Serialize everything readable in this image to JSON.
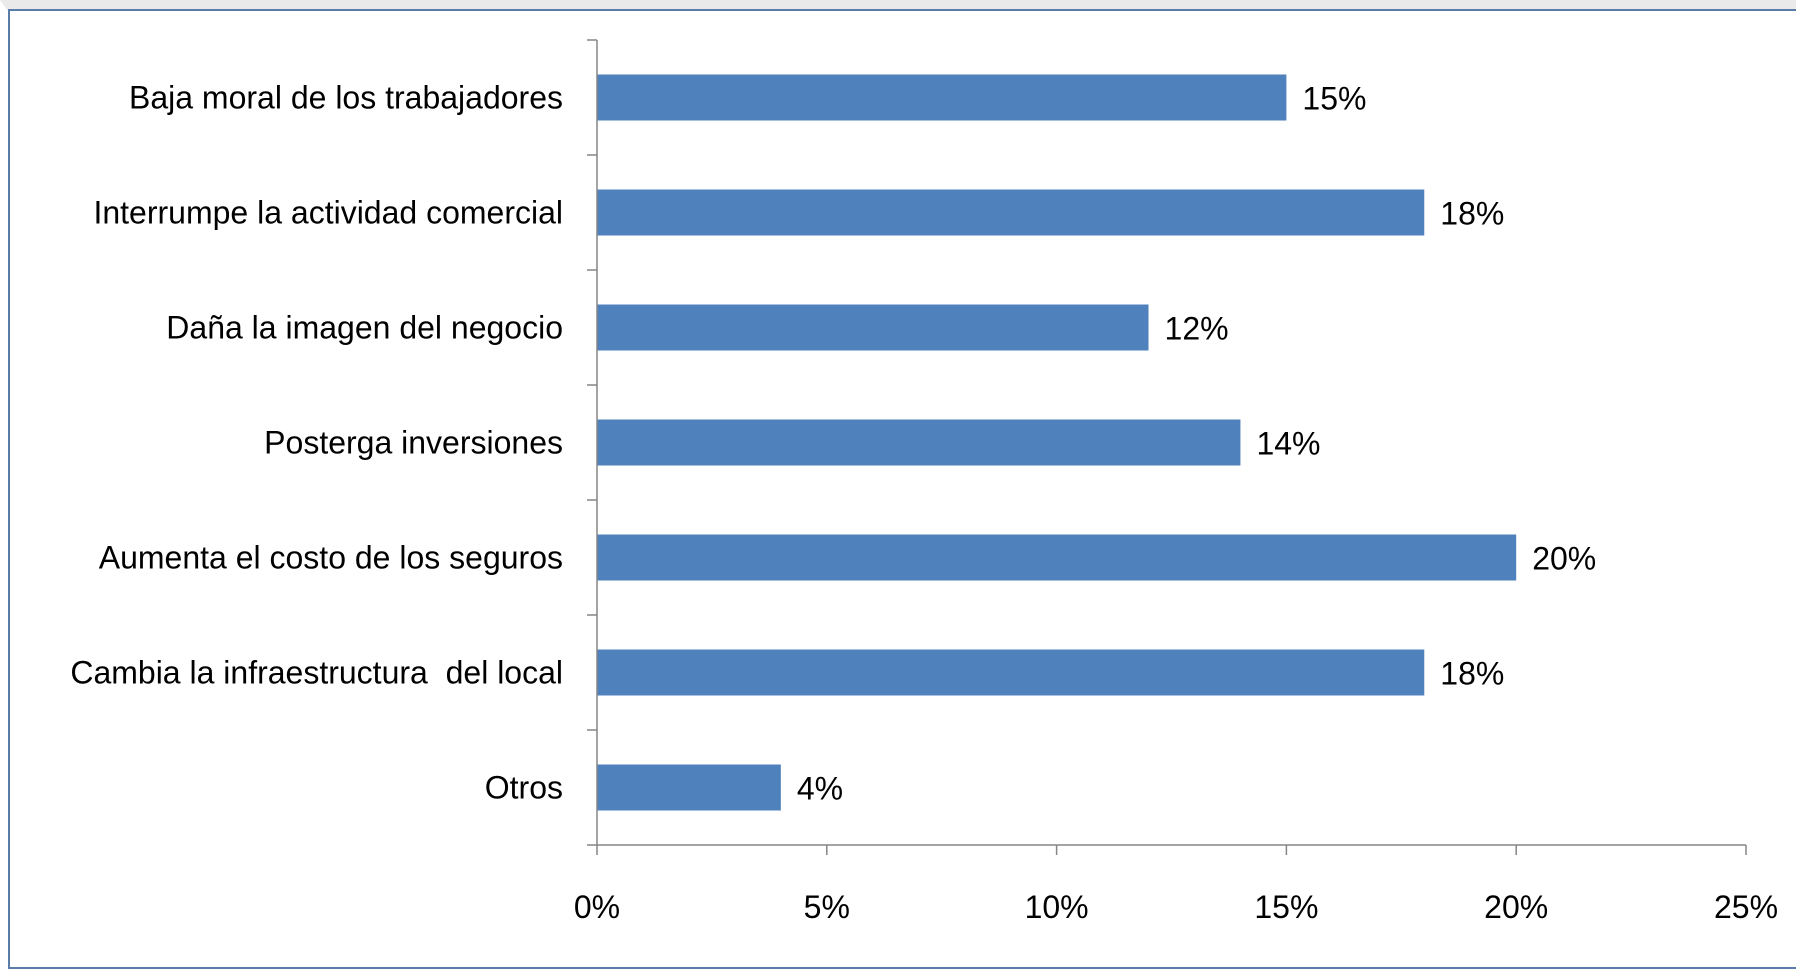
{
  "chart_data": {
    "type": "bar",
    "orientation": "horizontal",
    "categories": [
      "Baja moral de los trabajadores",
      "Interrumpe la actividad comercial",
      "Daña la imagen del negocio",
      "Posterga inversiones",
      "Aumenta el costo de los seguros",
      "Cambia la infraestructura  del local",
      "Otros"
    ],
    "values": [
      15,
      18,
      12,
      14,
      20,
      18,
      4
    ],
    "data_labels": [
      "15%",
      "18%",
      "12%",
      "14%",
      "20%",
      "18%",
      "4%"
    ],
    "xlim": [
      0,
      25
    ],
    "x_ticks": [
      0,
      5,
      10,
      15,
      20,
      25
    ],
    "x_tick_labels": [
      "0%",
      "5%",
      "10%",
      "15%",
      "20%",
      "25%"
    ],
    "bar_color": "#4f81bd",
    "grid": false,
    "legend": "none"
  }
}
